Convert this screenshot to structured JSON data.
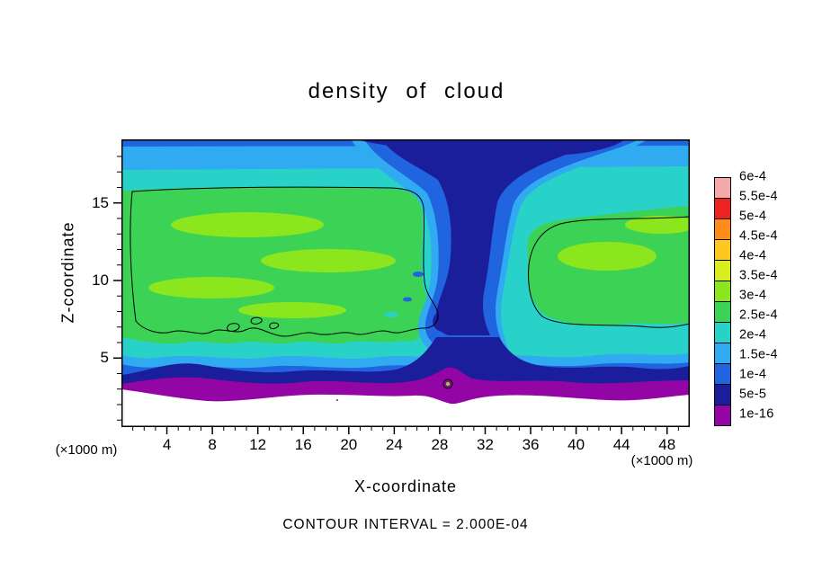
{
  "title": "density of cloud",
  "axes": {
    "x_label": "X-coordinate",
    "y_label": "Z-coordinate",
    "x_unit": "(×1000 m)",
    "x_ticks": [
      4,
      8,
      12,
      16,
      20,
      24,
      28,
      32,
      36,
      40,
      44,
      48
    ],
    "y_ticks": [
      5,
      10,
      15
    ]
  },
  "footer": {
    "contour_note": "CONTOUR INTERVAL = 2.000E-04"
  },
  "colorbar": {
    "labels": [
      "6e-4",
      "5.5e-4",
      "5e-4",
      "4.5e-4",
      "4e-4",
      "3.5e-4",
      "3e-4",
      "2.5e-4",
      "2e-4",
      "1.5e-4",
      "1e-4",
      "5e-5",
      "1e-16"
    ],
    "colors": [
      "#f6a9a9",
      "#ee2222",
      "#ff8c1a",
      "#ffc81e",
      "#d8ee1e",
      "#8ce61e",
      "#3cd255",
      "#28d2c8",
      "#30aaf0",
      "#2064e0",
      "#1a1e9b",
      "#9405a5"
    ]
  },
  "chart_data": {
    "type": "heatmap",
    "title": "density of cloud",
    "xlabel": "X-coordinate (×1000 m)",
    "ylabel": "Z-coordinate (×1000 m)",
    "xlim": [
      0,
      50
    ],
    "ylim": [
      0,
      19
    ],
    "grid": false,
    "legend_position": "right",
    "contour_interval": 0.0002,
    "levels": [
      1e-16,
      5e-05,
      0.0001,
      0.00015,
      0.0002,
      0.00025,
      0.0003,
      0.00035,
      0.0004,
      0.00045,
      0.0005,
      0.00055,
      0.0006
    ],
    "level_colors_low_to_high": [
      "#9405a5",
      "#1a1e9b",
      "#2064e0",
      "#30aaf0",
      "#28d2c8",
      "#3cd255",
      "#8ce61e",
      "#d8ee1e",
      "#ffc81e",
      "#ff8c1a",
      "#ee2222",
      "#f6a9a9"
    ],
    "x": [
      2,
      6,
      10,
      14,
      18,
      22,
      26,
      30,
      34,
      38,
      42,
      46,
      50
    ],
    "z": [
      18,
      16,
      14,
      12,
      10,
      8,
      6,
      5,
      4,
      3
    ],
    "values": [
      [
        0.00015,
        0.00015,
        0.00015,
        0.00015,
        0.00015,
        0.00015,
        0.0001,
        5e-05,
        0.0001,
        0.00015,
        0.00015,
        0.00015,
        0.00015
      ],
      [
        0.00025,
        0.00025,
        0.00025,
        0.00025,
        0.00025,
        0.00025,
        0.00015,
        5e-05,
        0.00015,
        0.0002,
        0.0002,
        0.0002,
        0.0002
      ],
      [
        0.00025,
        0.00025,
        0.00025,
        0.00025,
        0.00025,
        0.00025,
        0.0002,
        0.0001,
        0.0002,
        0.00025,
        0.00025,
        0.00025,
        0.00025
      ],
      [
        0.00025,
        0.0003,
        0.00025,
        0.0003,
        0.00025,
        0.00025,
        0.0002,
        0.0001,
        0.0002,
        0.00025,
        0.00025,
        0.00025,
        0.00025
      ],
      [
        0.00025,
        0.0003,
        0.0003,
        0.00025,
        0.0003,
        0.00025,
        0.00025,
        0.0001,
        0.0002,
        0.00025,
        0.00025,
        0.00025,
        0.00025
      ],
      [
        0.00025,
        0.00025,
        0.00025,
        0.00025,
        0.00025,
        0.00025,
        0.00025,
        0.00015,
        0.0002,
        0.00025,
        0.00025,
        0.00025,
        0.00025
      ],
      [
        0.0002,
        0.0002,
        0.0002,
        0.0002,
        0.0002,
        0.0002,
        0.0002,
        0.0001,
        0.00015,
        0.0002,
        0.0002,
        0.0002,
        0.0002
      ],
      [
        0.00015,
        0.00015,
        0.00015,
        0.00015,
        0.00015,
        0.00015,
        0.00015,
        5e-05,
        0.0001,
        0.00015,
        0.00015,
        0.00015,
        0.00015
      ],
      [
        5e-05,
        0.0001,
        5e-05,
        5e-05,
        0.0001,
        0.0001,
        5e-05,
        1e-16,
        5e-05,
        0.0001,
        5e-05,
        5e-05,
        5e-05
      ],
      [
        0,
        1e-16,
        1e-16,
        0,
        1e-16,
        1e-16,
        1e-16,
        1e-16,
        1e-16,
        0,
        1e-16,
        1e-16,
        0
      ]
    ],
    "annotations": [
      "black contour encloses region where density > 2e-4",
      "dark downdraft plume descends near x = 28–33",
      "thin purple trace layer at cloud base near z = 3, white (cloud-free) below"
    ]
  }
}
